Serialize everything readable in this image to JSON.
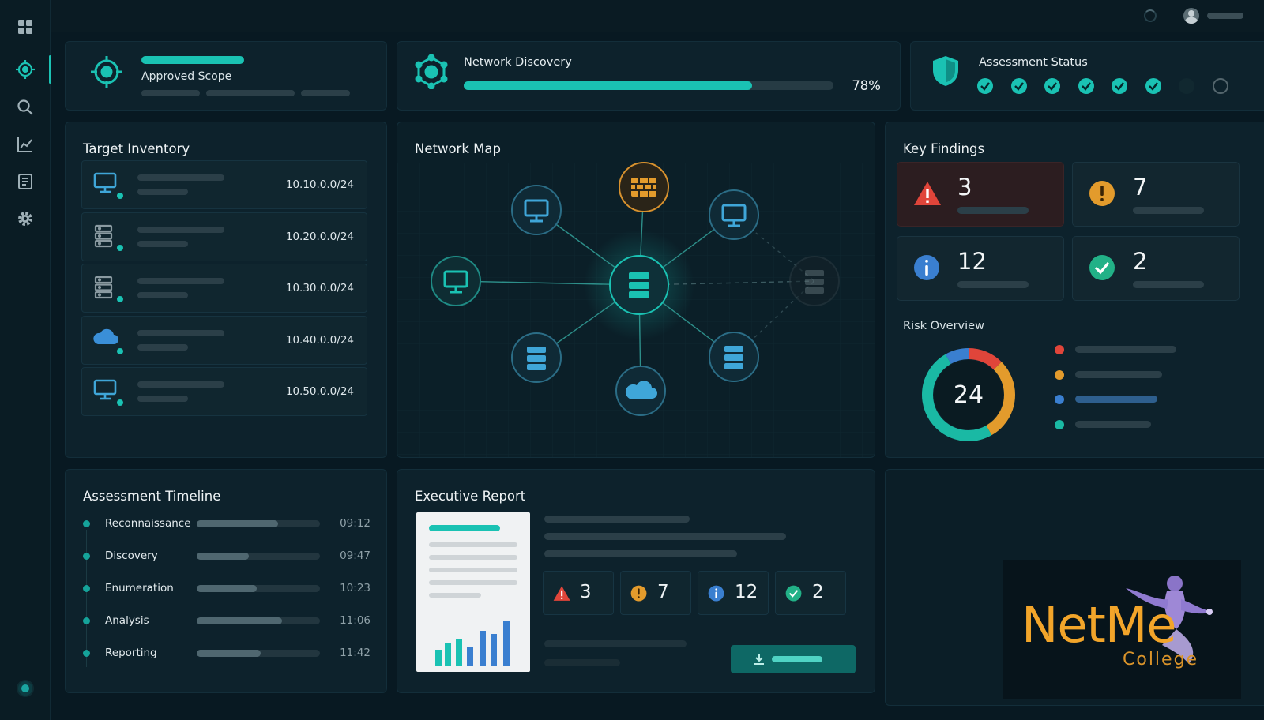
{
  "colors": {
    "teal": "#1ac2b3",
    "critical": "#e0453a",
    "warning": "#e39b2c",
    "info": "#3a7fd0",
    "ok": "#22b187",
    "background": "#081922"
  },
  "sidebar": {
    "items": [
      {
        "name": "dashboard-grid-icon"
      },
      {
        "name": "target-icon",
        "active": true
      },
      {
        "name": "search-icon"
      },
      {
        "name": "chart-icon"
      },
      {
        "name": "report-icon"
      },
      {
        "name": "gear-icon"
      }
    ]
  },
  "scope": {
    "label": "Approved Scope"
  },
  "discovery": {
    "title": "Network Discovery",
    "progress": 0.78,
    "progress_label": "78%"
  },
  "status": {
    "title": "Assessment Status",
    "steps_complete": 6,
    "steps_total": 8
  },
  "inventory": {
    "title": "Target Inventory",
    "rows": [
      {
        "icon": "monitor-icon",
        "subnet": "10.10.0.0/24"
      },
      {
        "icon": "server-icon",
        "subnet": "10.20.0.0/24"
      },
      {
        "icon": "server-icon",
        "subnet": "10.30.0.0/24"
      },
      {
        "icon": "cloud-icon",
        "subnet": "10.40.0.0/24"
      },
      {
        "icon": "monitor-icon",
        "subnet": "10.50.0.0/24"
      }
    ]
  },
  "network_map": {
    "title": "Network Map"
  },
  "findings": {
    "title": "Key Findings",
    "items": [
      {
        "severity": "critical",
        "icon": "warning-triangle-icon",
        "count": "3"
      },
      {
        "severity": "high",
        "icon": "exclamation-circle-icon",
        "count": "7"
      },
      {
        "severity": "info",
        "icon": "info-circle-icon",
        "count": "12"
      },
      {
        "severity": "resolved",
        "icon": "check-circle-icon",
        "count": "2"
      }
    ]
  },
  "risk": {
    "title": "Risk Overview",
    "total": "24",
    "segments": [
      {
        "color": "#e0453a",
        "value": 3
      },
      {
        "color": "#e39b2c",
        "value": 7
      },
      {
        "color": "#1ab9a4",
        "value": 12
      },
      {
        "color": "#3a7fd0",
        "value": 2
      }
    ]
  },
  "timeline": {
    "title": "Assessment Timeline",
    "items": [
      {
        "label": "Reconnaissance",
        "time": "09:12",
        "progress": 0.66
      },
      {
        "label": "Discovery",
        "time": "09:47",
        "progress": 0.42
      },
      {
        "label": "Enumeration",
        "time": "10:23",
        "progress": 0.49
      },
      {
        "label": "Analysis",
        "time": "11:06",
        "progress": 0.69
      },
      {
        "label": "Reporting",
        "time": "11:42",
        "progress": 0.52
      }
    ]
  },
  "report": {
    "title": "Executive Report",
    "counts": [
      "3",
      "7",
      "12",
      "2"
    ]
  },
  "brand": {
    "name": "NetMe",
    "sub": "College"
  }
}
